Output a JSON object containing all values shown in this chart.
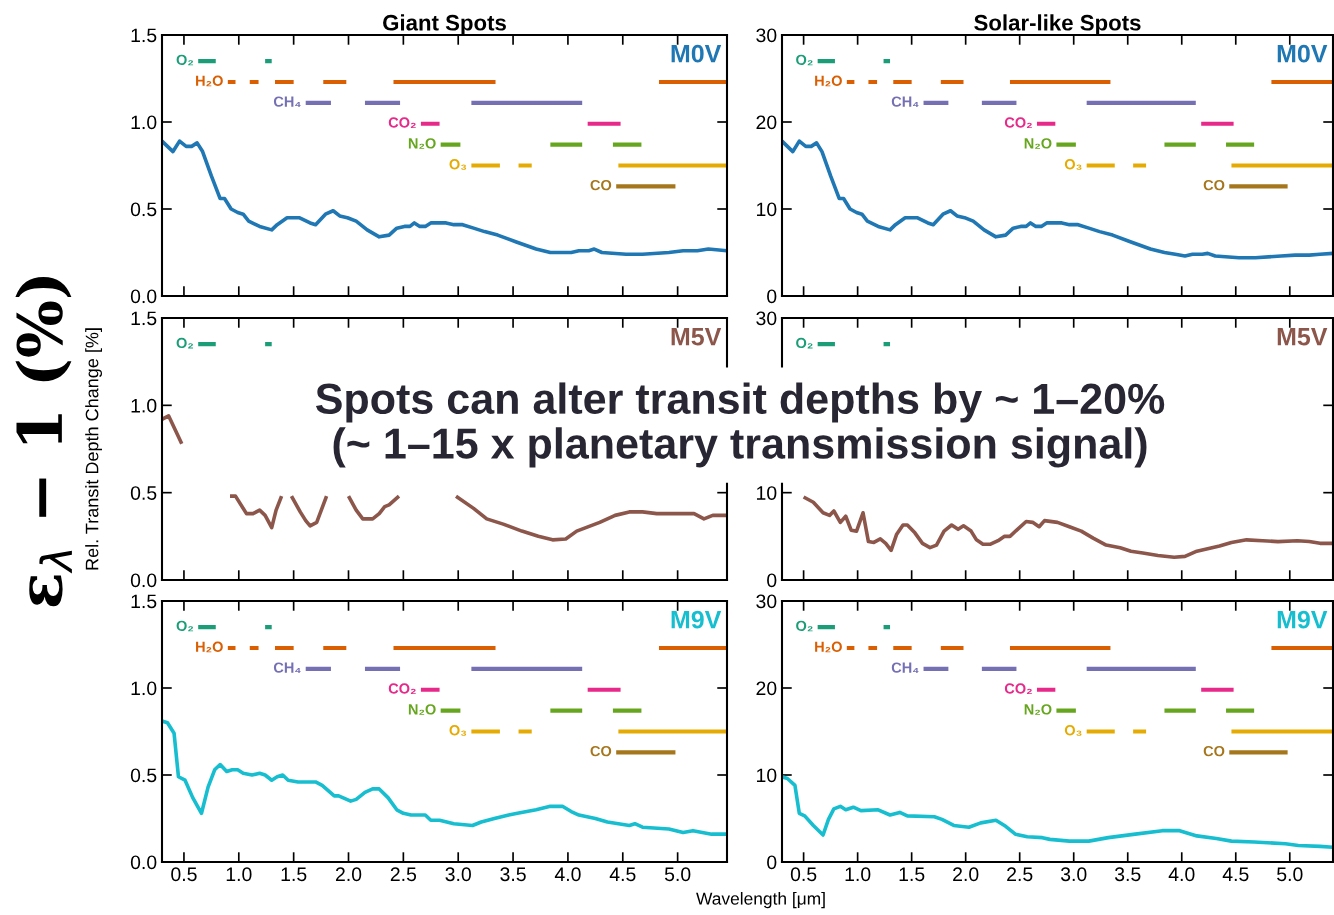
{
  "chart_data": [
    {
      "type": "line",
      "title": "Giant Spots",
      "xlim": [
        0.3,
        5.45
      ],
      "ylim": [
        0.0,
        1.5
      ],
      "xticks": [
        0.5,
        1,
        1.5,
        2,
        2.5,
        3,
        3.5,
        4,
        4.5,
        5
      ],
      "yticks": [
        {
          "value": 0,
          "label": "0.0"
        },
        0.5,
        {
          "value": 1,
          "label": "1.0"
        },
        1.5
      ],
      "tick_labels": "y",
      "series": [
        {
          "name": "O₂",
          "color": "#1b9e77",
          "x": [
            0.63,
            0.79,
            null,
            1.24,
            1.3
          ],
          "values": [
            1.35,
            1.35,
            null,
            1.35,
            1.35
          ]
        },
        {
          "name": "H₂O",
          "color": "#d95f02",
          "x": [
            0.9,
            0.97,
            null,
            1.1,
            1.18,
            null,
            1.33,
            1.5,
            null,
            1.77,
            1.98,
            null,
            2.41,
            3.34,
            null,
            4.83,
            5.45
          ],
          "values": [
            1.23,
            1.23,
            null,
            1.23,
            1.23,
            null,
            1.23,
            1.23,
            null,
            1.23,
            1.23,
            null,
            1.23,
            1.23,
            null,
            1.23,
            1.23
          ]
        },
        {
          "name": "CH₄",
          "color": "#7570b3",
          "x": [
            1.61,
            1.84,
            null,
            2.15,
            2.47,
            null,
            3.12,
            4.13
          ],
          "values": [
            1.11,
            1.11,
            null,
            1.11,
            1.11,
            null,
            1.11,
            1.11
          ]
        },
        {
          "name": "CO₂",
          "color": "#e7298a",
          "x": [
            2.66,
            2.83,
            null,
            4.18,
            4.48
          ],
          "values": [
            0.99,
            0.99,
            null,
            0.99,
            0.99
          ]
        },
        {
          "name": "N₂O",
          "color": "#66a61e",
          "x": [
            2.84,
            3.02,
            null,
            3.84,
            4.13,
            null,
            4.41,
            4.67
          ],
          "values": [
            0.87,
            0.87,
            null,
            0.87,
            0.87,
            null,
            0.87,
            0.87
          ]
        },
        {
          "name": "O₃",
          "color": "#e6ab02",
          "x": [
            3.12,
            3.38,
            null,
            3.55,
            3.67,
            null,
            4.46,
            5.45
          ],
          "values": [
            0.75,
            0.75,
            null,
            0.75,
            0.75,
            null,
            0.75,
            0.75
          ]
        },
        {
          "name": "CO",
          "color": "#a6761d",
          "x": [
            4.44,
            4.98
          ],
          "values": [
            0.63,
            0.63
          ]
        },
        {
          "name": "M0V",
          "color": "#1f77b4",
          "x": [
            0.3,
            0.4,
            0.46,
            0.52,
            0.57,
            0.62,
            0.67,
            0.75,
            0.83,
            0.87,
            0.93,
            0.99,
            1.04,
            1.09,
            1.19,
            1.3,
            1.35,
            1.44,
            1.55,
            1.65,
            1.7,
            1.79,
            1.86,
            1.92,
            1.99,
            2.07,
            2.17,
            2.28,
            2.37,
            2.44,
            2.51,
            2.56,
            2.6,
            2.65,
            2.7,
            2.75,
            2.81,
            2.89,
            2.96,
            3.04,
            3.14,
            3.24,
            3.36,
            3.53,
            3.71,
            3.84,
            3.94,
            4.03,
            4.1,
            4.19,
            4.24,
            4.31,
            4.53,
            4.68,
            4.92,
            5.05,
            5.18,
            5.28,
            5.45
          ],
          "values": [
            0.89,
            0.83,
            0.89,
            0.86,
            0.86,
            0.88,
            0.83,
            0.69,
            0.56,
            0.56,
            0.5,
            0.48,
            0.47,
            0.43,
            0.4,
            0.38,
            0.41,
            0.45,
            0.45,
            0.42,
            0.41,
            0.47,
            0.49,
            0.46,
            0.45,
            0.43,
            0.38,
            0.34,
            0.35,
            0.39,
            0.4,
            0.4,
            0.42,
            0.4,
            0.4,
            0.42,
            0.42,
            0.42,
            0.41,
            0.41,
            0.39,
            0.37,
            0.35,
            0.31,
            0.27,
            0.25,
            0.25,
            0.25,
            0.26,
            0.26,
            0.27,
            0.25,
            0.24,
            0.24,
            0.25,
            0.26,
            0.26,
            0.27,
            0.26
          ]
        }
      ]
    },
    {
      "type": "line",
      "title": "Solar-like Spots",
      "xlim": [
        0.3,
        5.4
      ],
      "ylim": [
        0,
        30
      ],
      "xticks": [
        0.5,
        1,
        1.5,
        2,
        2.5,
        3,
        3.5,
        4,
        4.5,
        5
      ],
      "yticks": [
        0,
        10,
        20,
        30
      ],
      "tick_labels": "y",
      "series": [
        {
          "name": "O₂",
          "color": "#1b9e77",
          "x": [
            0.63,
            0.79,
            null,
            1.24,
            1.3
          ],
          "values": [
            27,
            27,
            null,
            27,
            27
          ]
        },
        {
          "name": "H₂O",
          "color": "#d95f02",
          "x": [
            0.9,
            0.97,
            null,
            1.1,
            1.18,
            null,
            1.33,
            1.5,
            null,
            1.77,
            1.98,
            null,
            2.41,
            3.34,
            null,
            4.83,
            5.4
          ],
          "values": [
            24.6,
            24.6,
            null,
            24.6,
            24.6,
            null,
            24.6,
            24.6,
            null,
            24.6,
            24.6,
            null,
            24.6,
            24.6,
            null,
            24.6,
            24.6
          ]
        },
        {
          "name": "CH₄",
          "color": "#7570b3",
          "x": [
            1.61,
            1.84,
            null,
            2.15,
            2.47,
            null,
            3.12,
            4.13
          ],
          "values": [
            22.2,
            22.2,
            null,
            22.2,
            22.2,
            null,
            22.2,
            22.2
          ]
        },
        {
          "name": "CO₂",
          "color": "#e7298a",
          "x": [
            2.66,
            2.83,
            null,
            4.18,
            4.48
          ],
          "values": [
            19.8,
            19.8,
            null,
            19.8,
            19.8
          ]
        },
        {
          "name": "N₂O",
          "color": "#66a61e",
          "x": [
            2.84,
            3.02,
            null,
            3.84,
            4.13,
            null,
            4.41,
            4.67
          ],
          "values": [
            17.4,
            17.4,
            null,
            17.4,
            17.4,
            null,
            17.4,
            17.4
          ]
        },
        {
          "name": "O₃",
          "color": "#e6ab02",
          "x": [
            3.12,
            3.38,
            null,
            3.55,
            3.67,
            null,
            4.46,
            5.4
          ],
          "values": [
            15,
            15,
            null,
            15,
            15,
            null,
            15,
            15
          ]
        },
        {
          "name": "CO",
          "color": "#a6761d",
          "x": [
            4.44,
            4.98
          ],
          "values": [
            12.6,
            12.6
          ]
        },
        {
          "name": "M0V",
          "color": "#1f77b4",
          "x": [
            0.3,
            0.4,
            0.46,
            0.52,
            0.57,
            0.62,
            0.67,
            0.75,
            0.83,
            0.87,
            0.93,
            0.99,
            1.04,
            1.09,
            1.19,
            1.3,
            1.35,
            1.44,
            1.55,
            1.65,
            1.7,
            1.79,
            1.86,
            1.92,
            1.99,
            2.07,
            2.17,
            2.28,
            2.37,
            2.44,
            2.51,
            2.56,
            2.6,
            2.65,
            2.7,
            2.75,
            2.81,
            2.89,
            2.96,
            3.04,
            3.14,
            3.24,
            3.36,
            3.53,
            3.71,
            3.84,
            3.94,
            4.03,
            4.1,
            4.19,
            4.24,
            4.31,
            4.53,
            4.68,
            4.92,
            5.05,
            5.18,
            5.28,
            5.4
          ],
          "values": [
            17.8,
            16.6,
            17.8,
            17.2,
            17.2,
            17.6,
            16.6,
            13.8,
            11.2,
            11.2,
            10.0,
            9.6,
            9.4,
            8.6,
            8.0,
            7.6,
            8.2,
            9.0,
            9.0,
            8.4,
            8.2,
            9.4,
            9.8,
            9.2,
            9.0,
            8.6,
            7.6,
            6.8,
            7.0,
            7.8,
            8.0,
            8.0,
            8.4,
            8.0,
            8.0,
            8.4,
            8.4,
            8.4,
            8.2,
            8.2,
            7.8,
            7.4,
            7.0,
            6.2,
            5.4,
            5.0,
            4.8,
            4.6,
            4.8,
            4.8,
            4.9,
            4.6,
            4.4,
            4.4,
            4.6,
            4.7,
            4.7,
            4.8,
            4.9
          ]
        }
      ]
    },
    {
      "type": "line",
      "ylabel": "Rel. Transit Depth Change [%]",
      "annotations": [
        "ε$_{λ}$ − 1 (%)",
        "Spots can alter transit depths by ~ 1–20%\n(~ 1–15 x planetary transmission signal)"
      ],
      "xlim": [
        0.3,
        5.45
      ],
      "ylim": [
        0.0,
        1.5
      ],
      "xticks": [
        0.5,
        1,
        1.5,
        2,
        2.5,
        3,
        3.5,
        4,
        4.5,
        5
      ],
      "yticks": [
        {
          "value": 0,
          "label": "0.0"
        },
        0.5,
        {
          "value": 1,
          "label": "1.0"
        },
        1.5
      ],
      "tick_labels": "y",
      "series": [
        {
          "name": "O₂",
          "color": "#1b9e77",
          "x": [
            0.63,
            0.79,
            null,
            1.24,
            1.3
          ],
          "values": [
            1.35,
            1.35,
            null,
            1.35,
            1.35
          ]
        },
        {
          "name": "M5V",
          "color": "#8c564b",
          "x": [
            0.3,
            0.36,
            0.42,
            0.48,
            null,
            0.92,
            0.97,
            1.07,
            1.13,
            1.19,
            1.24,
            1.3,
            1.34,
            1.39,
            null,
            1.48,
            1.56,
            1.61,
            1.65,
            1.71,
            1.8,
            null,
            2.0,
            2.07,
            2.13,
            2.22,
            2.28,
            2.33,
            2.37,
            2.46,
            null,
            2.98,
            3.14,
            3.26,
            3.41,
            3.58,
            3.73,
            3.86,
            3.98,
            4.08,
            4.29,
            4.43,
            4.56,
            4.68,
            4.81,
            5.02,
            5.15,
            5.24,
            5.32,
            5.45
          ],
          "values": [
            0.92,
            0.94,
            0.86,
            0.78,
            null,
            0.48,
            0.48,
            0.38,
            0.38,
            0.4,
            0.37,
            0.3,
            0.4,
            0.48,
            null,
            0.48,
            0.39,
            0.34,
            0.31,
            0.33,
            0.48,
            null,
            0.48,
            0.4,
            0.35,
            0.35,
            0.38,
            0.42,
            0.43,
            0.48,
            null,
            0.48,
            0.41,
            0.35,
            0.32,
            0.28,
            0.25,
            0.23,
            0.235,
            0.28,
            0.33,
            0.37,
            0.39,
            0.39,
            0.38,
            0.38,
            0.38,
            0.35,
            0.37,
            0.37
          ]
        }
      ]
    },
    {
      "type": "line",
      "xlim": [
        0.3,
        5.4
      ],
      "ylim": [
        0,
        30
      ],
      "xticks": [
        0.5,
        1,
        1.5,
        2,
        2.5,
        3,
        3.5,
        4,
        4.5,
        5
      ],
      "yticks": [
        0,
        10,
        {
          "value": 20,
          "label": null
        },
        30
      ],
      "tick_labels": "y",
      "series": [
        {
          "name": "O₂",
          "color": "#1b9e77",
          "x": [
            0.63,
            0.79,
            null,
            1.24,
            1.3
          ],
          "values": [
            27,
            27,
            null,
            27,
            27
          ]
        },
        {
          "name": "M5V",
          "color": "#8c564b",
          "x": [
            0.5,
            0.59,
            0.68,
            0.74,
            0.78,
            0.84,
            0.89,
            0.94,
            0.99,
            1.05,
            1.1,
            1.15,
            1.21,
            1.26,
            1.31,
            1.36,
            1.42,
            1.46,
            1.53,
            1.6,
            1.67,
            1.73,
            1.8,
            1.87,
            1.93,
            1.98,
            2.05,
            2.1,
            2.16,
            2.23,
            2.3,
            2.36,
            2.41,
            2.48,
            2.56,
            2.62,
            2.68,
            2.73,
            2.85,
            2.96,
            3.07,
            3.18,
            3.3,
            3.43,
            3.53,
            3.64,
            3.78,
            3.93,
            4.03,
            4.14,
            4.35,
            4.46,
            4.6,
            4.75,
            4.89,
            5.07,
            5.18,
            5.28,
            5.4
          ],
          "values": [
            9.5,
            8.9,
            7.7,
            7.4,
            7.9,
            6.6,
            7.3,
            5.7,
            5.6,
            7.7,
            4.4,
            4.3,
            4.7,
            4.2,
            3.4,
            5.2,
            6.3,
            6.3,
            5.4,
            4.2,
            3.7,
            4.0,
            5.6,
            6.3,
            5.8,
            6.2,
            5.6,
            4.6,
            4.1,
            4.1,
            4.5,
            5.0,
            5.0,
            5.8,
            6.7,
            6.6,
            6.1,
            6.8,
            6.6,
            6.1,
            5.6,
            4.8,
            4.0,
            3.7,
            3.3,
            3.1,
            2.8,
            2.6,
            2.7,
            3.3,
            3.9,
            4.3,
            4.6,
            4.5,
            4.4,
            4.5,
            4.4,
            4.2,
            4.2
          ]
        }
      ]
    },
    {
      "type": "line",
      "xlabel": "Wavelength [μm]",
      "xlim": [
        0.3,
        5.45
      ],
      "ylim": [
        0.0,
        1.5
      ],
      "xticks": [
        0.5,
        {
          "value": 1,
          "label": "1.0"
        },
        1.5,
        {
          "value": 2,
          "label": "2.0"
        },
        2.5,
        {
          "value": 3,
          "label": "3.0"
        },
        3.5,
        {
          "value": 4,
          "label": "4.0"
        },
        4.5,
        {
          "value": 5,
          "label": "5.0"
        }
      ],
      "yticks": [
        {
          "value": 0,
          "label": "0.0"
        },
        0.5,
        {
          "value": 1,
          "label": "1.0"
        },
        1.5
      ],
      "series": [
        {
          "name": "O₂",
          "color": "#1b9e77",
          "x": [
            0.63,
            0.79,
            null,
            1.24,
            1.3
          ],
          "values": [
            1.35,
            1.35,
            null,
            1.35,
            1.35
          ]
        },
        {
          "name": "H₂O",
          "color": "#d95f02",
          "x": [
            0.9,
            0.97,
            null,
            1.1,
            1.18,
            null,
            1.33,
            1.5,
            null,
            1.77,
            1.98,
            null,
            2.41,
            3.34,
            null,
            4.83,
            5.45
          ],
          "values": [
            1.23,
            1.23,
            null,
            1.23,
            1.23,
            null,
            1.23,
            1.23,
            null,
            1.23,
            1.23,
            null,
            1.23,
            1.23,
            null,
            1.23,
            1.23
          ]
        },
        {
          "name": "CH₄",
          "color": "#7570b3",
          "x": [
            1.61,
            1.84,
            null,
            2.15,
            2.47,
            null,
            3.12,
            4.13
          ],
          "values": [
            1.11,
            1.11,
            null,
            1.11,
            1.11,
            null,
            1.11,
            1.11
          ]
        },
        {
          "name": "CO₂",
          "color": "#e7298a",
          "x": [
            2.66,
            2.83,
            null,
            4.18,
            4.48
          ],
          "values": [
            0.99,
            0.99,
            null,
            0.99,
            0.99
          ]
        },
        {
          "name": "N₂O",
          "color": "#66a61e",
          "x": [
            2.84,
            3.02,
            null,
            3.84,
            4.13,
            null,
            4.41,
            4.67
          ],
          "values": [
            0.87,
            0.87,
            null,
            0.87,
            0.87,
            null,
            0.87,
            0.87
          ]
        },
        {
          "name": "O₃",
          "color": "#e6ab02",
          "x": [
            3.12,
            3.38,
            null,
            3.55,
            3.67,
            null,
            4.46,
            5.45
          ],
          "values": [
            0.75,
            0.75,
            null,
            0.75,
            0.75,
            null,
            0.75,
            0.75
          ]
        },
        {
          "name": "CO",
          "color": "#a6761d",
          "x": [
            4.44,
            4.98
          ],
          "values": [
            0.63,
            0.63
          ]
        },
        {
          "name": "M9V",
          "color": "#17becf",
          "x": [
            0.3,
            0.35,
            0.41,
            0.45,
            0.51,
            0.58,
            0.66,
            0.72,
            0.78,
            0.83,
            0.89,
            0.94,
            0.99,
            1.04,
            1.12,
            1.19,
            1.24,
            1.3,
            1.35,
            1.4,
            1.45,
            1.54,
            1.7,
            1.76,
            1.87,
            1.91,
            2.02,
            2.07,
            2.15,
            2.22,
            2.28,
            2.36,
            2.44,
            2.5,
            2.57,
            2.66,
            2.7,
            2.75,
            2.83,
            2.96,
            3.13,
            3.21,
            3.33,
            3.46,
            3.54,
            3.71,
            3.84,
            3.95,
            4.03,
            4.1,
            4.25,
            4.36,
            4.56,
            4.61,
            4.68,
            4.92,
            5.05,
            5.14,
            5.31,
            5.45
          ],
          "values": [
            0.81,
            0.8,
            0.74,
            0.49,
            0.47,
            0.37,
            0.28,
            0.43,
            0.53,
            0.56,
            0.52,
            0.53,
            0.53,
            0.51,
            0.5,
            0.51,
            0.5,
            0.47,
            0.49,
            0.5,
            0.47,
            0.46,
            0.46,
            0.44,
            0.38,
            0.38,
            0.35,
            0.36,
            0.4,
            0.42,
            0.42,
            0.37,
            0.3,
            0.28,
            0.27,
            0.27,
            0.27,
            0.24,
            0.24,
            0.22,
            0.21,
            0.23,
            0.25,
            0.27,
            0.28,
            0.3,
            0.32,
            0.32,
            0.29,
            0.27,
            0.25,
            0.23,
            0.21,
            0.22,
            0.2,
            0.19,
            0.17,
            0.18,
            0.16,
            0.16
          ]
        }
      ]
    },
    {
      "type": "line",
      "xlim": [
        0.3,
        5.4
      ],
      "ylim": [
        0,
        30
      ],
      "xticks": [
        0.5,
        {
          "value": 1,
          "label": "1.0"
        },
        1.5,
        {
          "value": 2,
          "label": "2.0"
        },
        2.5,
        {
          "value": 3,
          "label": "3.0"
        },
        3.5,
        {
          "value": 4,
          "label": "4.0"
        },
        4.5,
        {
          "value": 5,
          "label": "5.0"
        }
      ],
      "yticks": [
        0,
        10,
        20,
        30
      ],
      "series": [
        {
          "name": "O₂",
          "color": "#1b9e77",
          "x": [
            0.63,
            0.79,
            null,
            1.24,
            1.3
          ],
          "values": [
            27,
            27,
            null,
            27,
            27
          ]
        },
        {
          "name": "H₂O",
          "color": "#d95f02",
          "x": [
            0.9,
            0.97,
            null,
            1.1,
            1.18,
            null,
            1.33,
            1.5,
            null,
            1.77,
            1.98,
            null,
            2.41,
            3.34,
            null,
            4.83,
            5.4
          ],
          "values": [
            24.6,
            24.6,
            null,
            24.6,
            24.6,
            null,
            24.6,
            24.6,
            null,
            24.6,
            24.6,
            null,
            24.6,
            24.6,
            null,
            24.6,
            24.6
          ]
        },
        {
          "name": "CH₄",
          "color": "#7570b3",
          "x": [
            1.61,
            1.84,
            null,
            2.15,
            2.47,
            null,
            3.12,
            4.13
          ],
          "values": [
            22.2,
            22.2,
            null,
            22.2,
            22.2,
            null,
            22.2,
            22.2
          ]
        },
        {
          "name": "CO₂",
          "color": "#e7298a",
          "x": [
            2.66,
            2.83,
            null,
            4.18,
            4.48
          ],
          "values": [
            19.8,
            19.8,
            null,
            19.8,
            19.8
          ]
        },
        {
          "name": "N₂O",
          "color": "#66a61e",
          "x": [
            2.84,
            3.02,
            null,
            3.84,
            4.13,
            null,
            4.41,
            4.67
          ],
          "values": [
            17.4,
            17.4,
            null,
            17.4,
            17.4,
            null,
            17.4,
            17.4
          ]
        },
        {
          "name": "O₃",
          "color": "#e6ab02",
          "x": [
            3.12,
            3.38,
            null,
            3.55,
            3.67,
            null,
            4.46,
            5.4
          ],
          "values": [
            15,
            15,
            null,
            15,
            15,
            null,
            15,
            15
          ]
        },
        {
          "name": "CO",
          "color": "#a6761d",
          "x": [
            4.44,
            4.98
          ],
          "values": [
            12.6,
            12.6
          ]
        },
        {
          "name": "M9V",
          "color": "#17becf",
          "x": [
            0.3,
            0.35,
            0.42,
            0.46,
            0.51,
            0.59,
            0.68,
            0.73,
            0.78,
            0.84,
            0.89,
            0.96,
            1.03,
            1.19,
            1.3,
            1.39,
            1.46,
            1.71,
            1.78,
            1.89,
            2.03,
            2.14,
            2.28,
            2.37,
            2.46,
            2.57,
            2.71,
            2.78,
            2.96,
            3.14,
            3.32,
            3.57,
            3.82,
            3.98,
            4.14,
            4.32,
            4.46,
            4.67,
            4.96,
            5.08,
            5.28,
            5.4
          ],
          "values": [
            9.8,
            9.6,
            8.8,
            5.6,
            5.3,
            4.2,
            3.1,
            4.9,
            6.1,
            6.4,
            6.0,
            6.3,
            5.9,
            6.0,
            5.4,
            5.7,
            5.3,
            5.2,
            4.9,
            4.2,
            4.0,
            4.5,
            4.8,
            4.1,
            3.2,
            2.9,
            2.8,
            2.6,
            2.4,
            2.4,
            2.8,
            3.2,
            3.6,
            3.6,
            3.0,
            2.7,
            2.4,
            2.3,
            2.1,
            1.9,
            1.8,
            1.7
          ]
        }
      ]
    }
  ]
}
